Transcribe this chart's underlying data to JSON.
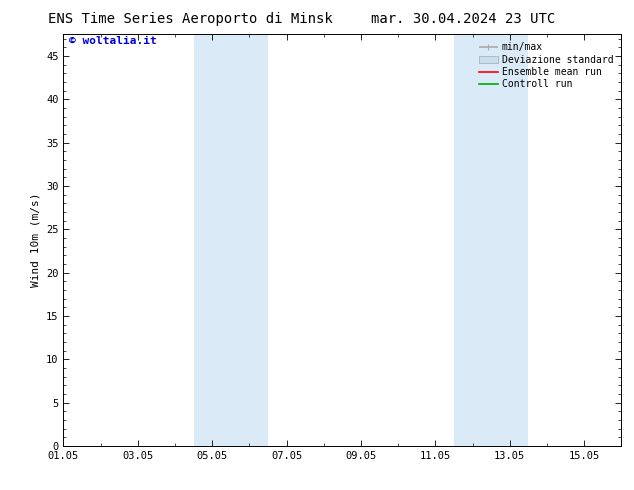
{
  "title_left": "ENS Time Series Aeroporto di Minsk",
  "title_right": "mar. 30.04.2024 23 UTC",
  "ylabel": "Wind 10m (m/s)",
  "watermark": "© woltalia.it",
  "watermark_color": "#0000dd",
  "ylim": [
    0,
    47.5
  ],
  "yticks": [
    0,
    5,
    10,
    15,
    20,
    25,
    30,
    35,
    40,
    45
  ],
  "xlim": [
    0,
    15
  ],
  "xtick_labels": [
    "01.05",
    "03.05",
    "05.05",
    "07.05",
    "09.05",
    "11.05",
    "13.05",
    "15.05"
  ],
  "xtick_positions_days": [
    0,
    2,
    4,
    6,
    8,
    10,
    12,
    14
  ],
  "bg_color": "#ffffff",
  "plot_bg_color": "#ffffff",
  "shaded_bands": [
    {
      "xstart_day": 3.5,
      "xend_day": 5.5,
      "color": "#daeaf7"
    },
    {
      "xstart_day": 10.5,
      "xend_day": 12.5,
      "color": "#daeaf7"
    }
  ],
  "legend_items": [
    {
      "label": "min/max",
      "color": "#aaaaaa",
      "lw": 1.2,
      "style": "minmax"
    },
    {
      "label": "Deviazione standard",
      "color": "#c8dff0",
      "lw": 8,
      "style": "band"
    },
    {
      "label": "Ensemble mean run",
      "color": "#ff0000",
      "lw": 1.2,
      "style": "line"
    },
    {
      "label": "Controll run",
      "color": "#00aa00",
      "lw": 1.2,
      "style": "line"
    }
  ],
  "title_fontsize": 10,
  "ylabel_fontsize": 8,
  "tick_fontsize": 7.5,
  "legend_fontsize": 7,
  "watermark_fontsize": 8
}
